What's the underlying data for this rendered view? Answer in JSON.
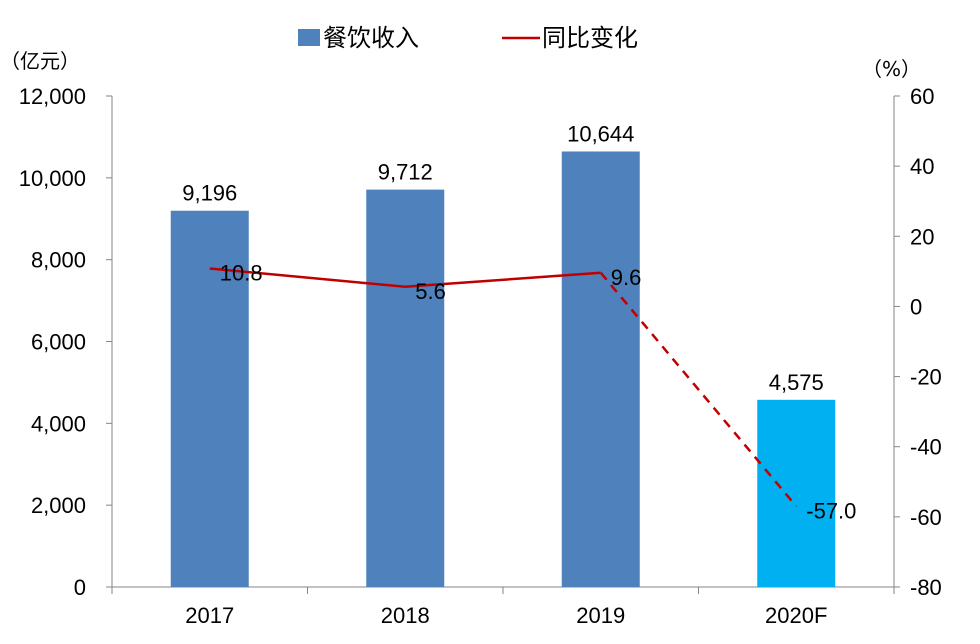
{
  "chart_data": {
    "type": "bar",
    "categories": [
      "2017",
      "2018",
      "2019",
      "2020F"
    ],
    "series": [
      {
        "name": "餐饮收入",
        "kind": "bar",
        "axis": "left",
        "values": [
          9196,
          9712,
          10644,
          4575
        ],
        "labels": [
          "9,196",
          "9,712",
          "10,644",
          "4,575"
        ],
        "colors": [
          "#4f81bd",
          "#4f81bd",
          "#4f81bd",
          "#00b0f0"
        ]
      },
      {
        "name": "同比变化",
        "kind": "line",
        "axis": "right",
        "values": [
          10.8,
          5.6,
          9.6,
          -57.0
        ],
        "labels": [
          "10.8",
          "5.6",
          "9.6",
          "-57.0"
        ],
        "color": "#c00000",
        "dashed_last_segment": true
      }
    ],
    "left_axis": {
      "unit": "（亿元）",
      "ylim": [
        0,
        12000
      ],
      "ticks": [
        0,
        2000,
        4000,
        6000,
        8000,
        10000,
        12000
      ],
      "tick_labels": [
        "0",
        "2,000",
        "4,000",
        "6,000",
        "8,000",
        "10,000",
        "12,000"
      ]
    },
    "right_axis": {
      "unit": "（%）",
      "ylim": [
        -80,
        60
      ],
      "ticks": [
        -80,
        -60,
        -40,
        -20,
        0,
        20,
        40,
        60
      ],
      "tick_labels": [
        "-80",
        "-60",
        "-40",
        "-20",
        "0",
        "20",
        "40",
        "60"
      ]
    },
    "legend": {
      "position": "top",
      "items": [
        "餐饮收入",
        "同比变化"
      ]
    },
    "grid": false
  }
}
